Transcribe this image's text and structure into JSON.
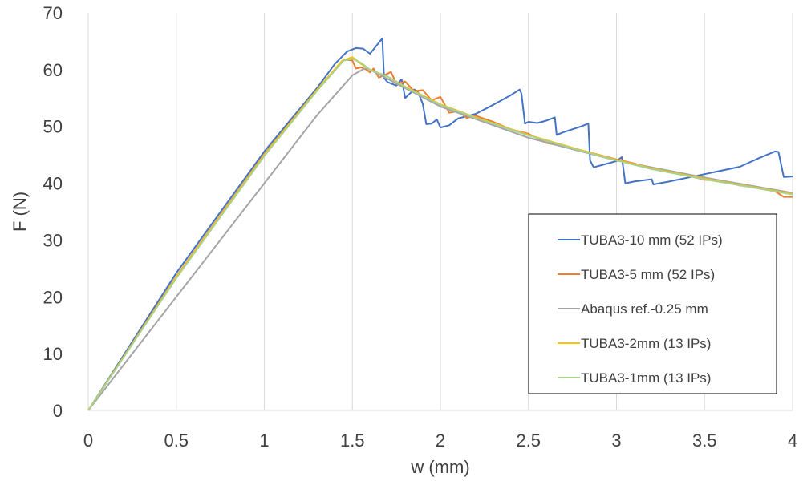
{
  "chart_data": {
    "type": "line",
    "title": "",
    "xlabel": "w (mm)",
    "ylabel": "F (N)",
    "xlim": [
      0,
      4
    ],
    "ylim": [
      0,
      70
    ],
    "xticks": [
      0,
      0.5,
      1,
      1.5,
      2,
      2.5,
      3,
      3.5,
      4
    ],
    "xtick_labels": [
      "0",
      "0.5",
      "1",
      "1.5",
      "2",
      "2.5",
      "3",
      "3.5",
      "4"
    ],
    "yticks": [
      0,
      10,
      20,
      30,
      40,
      50,
      60,
      70
    ],
    "ytick_labels": [
      "0",
      "10",
      "20",
      "30",
      "40",
      "50",
      "60",
      "70"
    ],
    "grid": "vertical",
    "legend_position": "bottom-right",
    "series": [
      {
        "name": "TUBA3-10 mm (52 IPs)",
        "color": "#4472c4",
        "x": [
          0,
          0.5,
          1.0,
          1.3,
          1.4,
          1.47,
          1.52,
          1.56,
          1.6,
          1.67,
          1.68,
          1.7,
          1.75,
          1.78,
          1.8,
          1.85,
          1.87,
          1.9,
          1.92,
          1.95,
          1.98,
          2.0,
          2.05,
          2.1,
          2.2,
          2.3,
          2.4,
          2.45,
          2.46,
          2.48,
          2.5,
          2.55,
          2.6,
          2.65,
          2.66,
          2.7,
          2.8,
          2.84,
          2.85,
          2.87,
          3.0,
          3.03,
          3.05,
          3.1,
          3.2,
          3.21,
          3.3,
          3.5,
          3.7,
          3.8,
          3.9,
          3.92,
          3.95,
          4.0
        ],
        "y": [
          0,
          24.2,
          45.6,
          56.8,
          61.0,
          63.2,
          63.8,
          63.7,
          62.8,
          65.5,
          58.5,
          57.8,
          57.2,
          58.3,
          55.0,
          56.5,
          56.2,
          54.0,
          50.4,
          50.5,
          51.2,
          49.8,
          50.2,
          51.4,
          52.2,
          53.8,
          55.5,
          56.5,
          55.8,
          50.5,
          50.8,
          50.6,
          51.0,
          51.6,
          48.5,
          49.0,
          50.0,
          50.5,
          44.0,
          42.8,
          43.9,
          44.6,
          40.0,
          40.3,
          40.7,
          39.8,
          40.3,
          41.6,
          42.9,
          44.3,
          45.6,
          45.5,
          41.1,
          41.2
        ]
      },
      {
        "name": "TUBA3-5 mm (52 IPs)",
        "color": "#ed7d31",
        "x": [
          0,
          0.5,
          1.0,
          1.3,
          1.45,
          1.5,
          1.52,
          1.55,
          1.58,
          1.6,
          1.62,
          1.65,
          1.68,
          1.72,
          1.75,
          1.8,
          1.85,
          1.9,
          1.95,
          2.0,
          2.05,
          2.1,
          2.15,
          2.2,
          2.3,
          2.4,
          2.5,
          2.6,
          2.7,
          2.8,
          2.9,
          3.0,
          3.1,
          3.2,
          3.3,
          3.4,
          3.5,
          3.6,
          3.7,
          3.8,
          3.9,
          3.95,
          4.0
        ],
        "y": [
          0,
          23.6,
          45.1,
          56.5,
          61.8,
          61.6,
          60.2,
          60.4,
          60.0,
          59.5,
          60.2,
          58.6,
          59.0,
          59.6,
          57.5,
          57.9,
          56.2,
          56.4,
          54.6,
          55.2,
          52.4,
          52.7,
          51.5,
          51.9,
          50.8,
          49.5,
          48.7,
          47.1,
          46.5,
          45.8,
          45.0,
          44.2,
          43.5,
          42.5,
          42.2,
          41.4,
          40.6,
          40.4,
          39.6,
          39.3,
          38.6,
          37.6,
          37.6
        ]
      },
      {
        "name": "Abaqus ref.-0.25 mm",
        "color": "#a5a5a5",
        "x": [
          0,
          0.5,
          1.0,
          1.3,
          1.5,
          1.57,
          1.6,
          2.0,
          2.5,
          3.0,
          3.5,
          4.0
        ],
        "y": [
          0,
          20.0,
          40.0,
          52.0,
          59.0,
          60.2,
          60.0,
          53.5,
          48.0,
          44.0,
          41.0,
          38.3
        ]
      },
      {
        "name": "TUBA3-2mm (13 IPs)",
        "color": "#ffc000",
        "x": [
          0,
          0.5,
          1.0,
          1.3,
          1.44,
          1.48,
          1.5,
          1.55,
          1.6,
          1.7,
          1.8,
          2.0,
          2.2,
          2.5,
          2.8,
          3.0,
          3.2,
          3.5,
          3.8,
          4.0
        ],
        "y": [
          0,
          23.5,
          45.0,
          56.5,
          61.5,
          62.0,
          62.2,
          61.0,
          60.0,
          58.8,
          57.0,
          53.9,
          51.6,
          48.5,
          45.8,
          44.1,
          42.6,
          40.8,
          39.2,
          38.1
        ]
      },
      {
        "name": "TUBA3-1mm (13 IPs)",
        "color": "#a9d18e",
        "x": [
          0,
          0.5,
          1.0,
          1.3,
          1.45,
          1.5,
          1.55,
          1.6,
          1.7,
          1.8,
          2.0,
          2.2,
          2.5,
          2.8,
          3.0,
          3.2,
          3.5,
          3.8,
          4.0
        ],
        "y": [
          0,
          23.3,
          44.8,
          56.3,
          61.6,
          61.9,
          61.2,
          60.0,
          58.8,
          56.9,
          53.8,
          51.5,
          48.4,
          45.7,
          44.0,
          42.5,
          40.7,
          39.1,
          38.0
        ]
      }
    ]
  }
}
